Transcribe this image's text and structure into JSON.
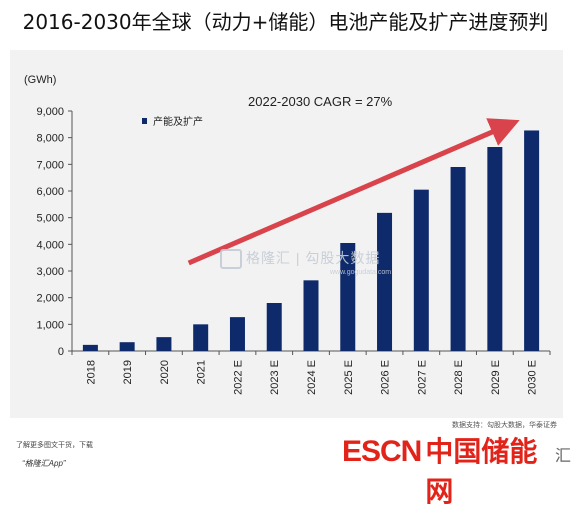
{
  "page": {
    "title": "2016-2030年全球（动力+储能）电池产能及扩产进度预判",
    "watermark": "格隆汇 | 勾股大数据",
    "watermark_sub": "www.gogudata.com",
    "source": "数据支持：勾股大数据，华泰证券",
    "footer_line1": "了解更多图文干货，下载",
    "footer_line2": "“格隆汇App”",
    "brand_en": "ESCN",
    "brand_zh": "中国储能网",
    "brand_tail": "汇"
  },
  "colors": {
    "bar": "#0f2a6b",
    "arrow": "#d9444c",
    "panel": "#f2f2f2"
  },
  "chart_data": {
    "type": "bar",
    "unit_label": "(GWh)",
    "legend": "产能及扩产",
    "annotation": "2022-2030 CAGR = 27%",
    "categories": [
      "2018",
      "2019",
      "2020",
      "2021",
      "2022 E",
      "2023 E",
      "2024 E",
      "2025 E",
      "2026 E",
      "2027 E",
      "2028 E",
      "2029 E",
      "2030 E"
    ],
    "values": [
      230,
      330,
      520,
      1000,
      1270,
      1800,
      2650,
      4050,
      5180,
      6050,
      6900,
      7650,
      8270
    ],
    "ylim": [
      0,
      9000
    ],
    "yticks": [
      0,
      1000,
      2000,
      3000,
      4000,
      5000,
      6000,
      7000,
      8000,
      9000
    ],
    "ytick_labels": [
      "0",
      "1,000",
      "2,000",
      "3,000",
      "4,000",
      "5,000",
      "6,000",
      "7,000",
      "8,000",
      "9,000"
    ],
    "arrow": {
      "from": [
        "2021",
        3300
      ],
      "to": [
        "2029 E",
        8450
      ]
    },
    "grid": false
  }
}
